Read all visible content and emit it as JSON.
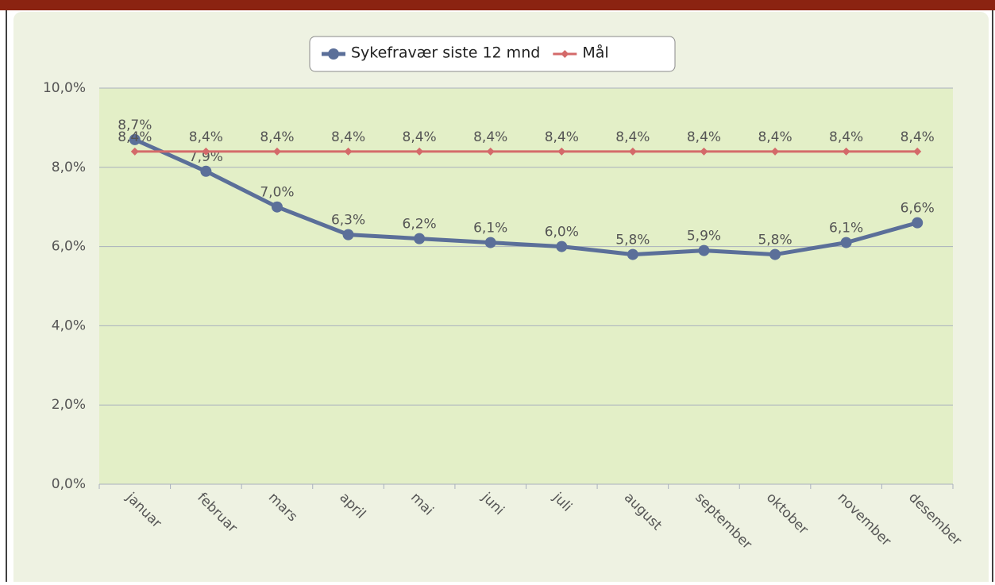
{
  "chart_data": {
    "type": "line",
    "categories": [
      "januar",
      "februar",
      "mars",
      "april",
      "mai",
      "juni",
      "juli",
      "august",
      "september",
      "oktober",
      "november",
      "desember"
    ],
    "series": [
      {
        "name": "Sykefravær siste 12 mnd",
        "color": "#5b6f99",
        "values": [
          8.7,
          7.9,
          7.0,
          6.3,
          6.2,
          6.1,
          6.0,
          5.8,
          5.9,
          5.8,
          6.1,
          6.6
        ],
        "value_labels": [
          "8,7%",
          "7,9%",
          "7,0%",
          "6,3%",
          "6,2%",
          "6,1%",
          "6,0%",
          "5,8%",
          "5,9%",
          "5,8%",
          "6,1%",
          "6,6%"
        ]
      },
      {
        "name": "Mål",
        "color": "#d46a6a",
        "values": [
          8.4,
          8.4,
          8.4,
          8.4,
          8.4,
          8.4,
          8.4,
          8.4,
          8.4,
          8.4,
          8.4,
          8.4
        ],
        "value_labels": [
          "8,4%",
          "8,4%",
          "8,4%",
          "8,4%",
          "8,4%",
          "8,4%",
          "8,4%",
          "8,4%",
          "8,4%",
          "8,4%",
          "8,4%",
          "8,4%"
        ]
      }
    ],
    "ylim": [
      0,
      10
    ],
    "yticks": [
      {
        "value": 0,
        "label": "0,0%"
      },
      {
        "value": 2,
        "label": "2,0%"
      },
      {
        "value": 4,
        "label": "4,0%"
      },
      {
        "value": 6,
        "label": "6,0%"
      },
      {
        "value": 8,
        "label": "8,0%"
      },
      {
        "value": 10,
        "label": "10,0%"
      }
    ],
    "grid": true,
    "legend": "top"
  }
}
